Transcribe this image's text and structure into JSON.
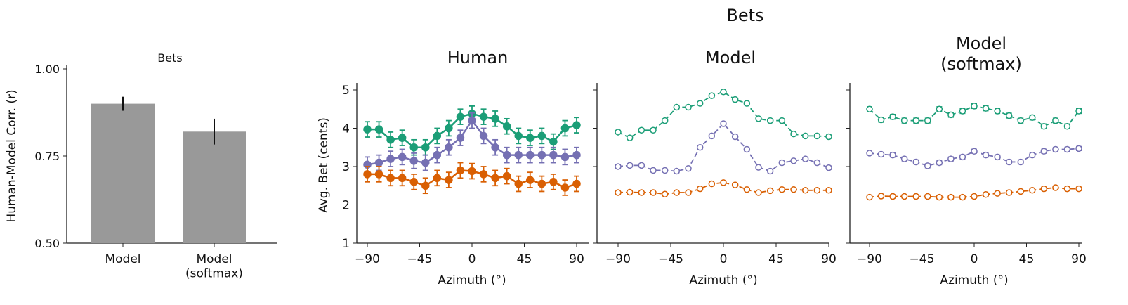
{
  "suptitle": "Bets",
  "chart_data": [
    {
      "type": "bar",
      "title": "Bets",
      "ylabel": "Human-Model Corr. (r)",
      "ylim": [
        0.5,
        1.0
      ],
      "yticks": [
        "0.50",
        "0.75",
        "1.00"
      ],
      "categories": [
        "Model",
        "Model\n(softmax)"
      ],
      "values": [
        0.9,
        0.82
      ],
      "errors": [
        0.02,
        0.037
      ],
      "color": "#999999"
    },
    {
      "type": "line",
      "title": "Human",
      "xlabel": "Azimuth (°)",
      "ylabel": "Avg. Bet (cents)",
      "ylim": [
        1,
        5.2
      ],
      "xlim": [
        -98,
        98
      ],
      "xticks": [
        "−90",
        "−45",
        "0",
        "45",
        "90"
      ],
      "yticks": [
        "1",
        "2",
        "3",
        "4",
        "5"
      ],
      "marker": "filled-circle",
      "linestyle": "solid",
      "x": [
        -90,
        -80,
        -70,
        -60,
        -50,
        -40,
        -30,
        -20,
        -10,
        0,
        10,
        20,
        30,
        40,
        50,
        60,
        70,
        80,
        90
      ],
      "series": [
        {
          "color": "#1b9e77",
          "values": [
            3.97,
            3.97,
            3.7,
            3.75,
            3.5,
            3.5,
            3.8,
            4.0,
            4.3,
            4.38,
            4.3,
            4.25,
            4.05,
            3.8,
            3.75,
            3.8,
            3.65,
            4.0,
            4.08
          ],
          "error": 0.2
        },
        {
          "color": "#7570b3",
          "values": [
            3.05,
            3.1,
            3.2,
            3.25,
            3.15,
            3.1,
            3.3,
            3.5,
            3.75,
            4.2,
            3.8,
            3.5,
            3.3,
            3.3,
            3.3,
            3.3,
            3.3,
            3.25,
            3.3
          ],
          "error": 0.2
        },
        {
          "color": "#d95f02",
          "values": [
            2.8,
            2.8,
            2.7,
            2.7,
            2.6,
            2.5,
            2.7,
            2.65,
            2.9,
            2.88,
            2.8,
            2.7,
            2.75,
            2.55,
            2.65,
            2.55,
            2.6,
            2.45,
            2.55
          ],
          "error": 0.2
        }
      ]
    },
    {
      "type": "line",
      "title": "Model",
      "xlabel": "Azimuth (°)",
      "ylim": [
        1,
        5.2
      ],
      "xlim": [
        -98,
        98
      ],
      "xticks": [
        "−90",
        "−45",
        "0",
        "45",
        "90"
      ],
      "marker": "open-circle",
      "linestyle": "dashed",
      "x": [
        -90,
        -80,
        -70,
        -60,
        -50,
        -40,
        -30,
        -20,
        -10,
        0,
        10,
        20,
        30,
        40,
        50,
        60,
        70,
        80,
        90
      ],
      "series": [
        {
          "color": "#1b9e77",
          "values": [
            3.9,
            3.75,
            3.95,
            3.95,
            4.2,
            4.55,
            4.55,
            4.65,
            4.85,
            4.95,
            4.75,
            4.65,
            4.25,
            4.2,
            4.2,
            3.85,
            3.8,
            3.8,
            3.78
          ],
          "error": 0.04
        },
        {
          "color": "#7570b3",
          "values": [
            3.0,
            3.03,
            3.03,
            2.9,
            2.9,
            2.88,
            2.95,
            3.5,
            3.8,
            4.12,
            3.78,
            3.45,
            2.98,
            2.88,
            3.1,
            3.15,
            3.2,
            3.1,
            2.97
          ],
          "error": 0.04
        },
        {
          "color": "#d95f02",
          "values": [
            2.32,
            2.33,
            2.32,
            2.32,
            2.28,
            2.32,
            2.32,
            2.42,
            2.55,
            2.58,
            2.52,
            2.4,
            2.32,
            2.37,
            2.4,
            2.4,
            2.38,
            2.38,
            2.38
          ],
          "error": 0.03
        }
      ]
    },
    {
      "type": "line",
      "title": "Model\n(softmax)",
      "xlabel": "Azimuth (°)",
      "ylim": [
        1,
        5.2
      ],
      "xlim": [
        -98,
        98
      ],
      "xticks": [
        "−90",
        "−45",
        "0",
        "45",
        "90"
      ],
      "marker": "open-circle",
      "linestyle": "dashed",
      "x": [
        -90,
        -80,
        -70,
        -60,
        -50,
        -40,
        -30,
        -20,
        -10,
        0,
        10,
        20,
        30,
        40,
        50,
        60,
        70,
        80,
        90
      ],
      "series": [
        {
          "color": "#1b9e77",
          "values": [
            4.5,
            4.22,
            4.3,
            4.2,
            4.2,
            4.2,
            4.5,
            4.35,
            4.45,
            4.58,
            4.52,
            4.45,
            4.33,
            4.2,
            4.28,
            4.05,
            4.2,
            4.05,
            4.45
          ],
          "error": 0.06
        },
        {
          "color": "#7570b3",
          "values": [
            3.35,
            3.32,
            3.3,
            3.2,
            3.12,
            3.02,
            3.1,
            3.2,
            3.25,
            3.4,
            3.3,
            3.25,
            3.12,
            3.12,
            3.3,
            3.4,
            3.45,
            3.45,
            3.47
          ],
          "error": 0.05
        },
        {
          "color": "#d95f02",
          "values": [
            2.2,
            2.23,
            2.22,
            2.22,
            2.22,
            2.22,
            2.2,
            2.2,
            2.2,
            2.22,
            2.27,
            2.3,
            2.32,
            2.35,
            2.38,
            2.42,
            2.45,
            2.42,
            2.42
          ],
          "error": 0.04
        }
      ]
    }
  ]
}
